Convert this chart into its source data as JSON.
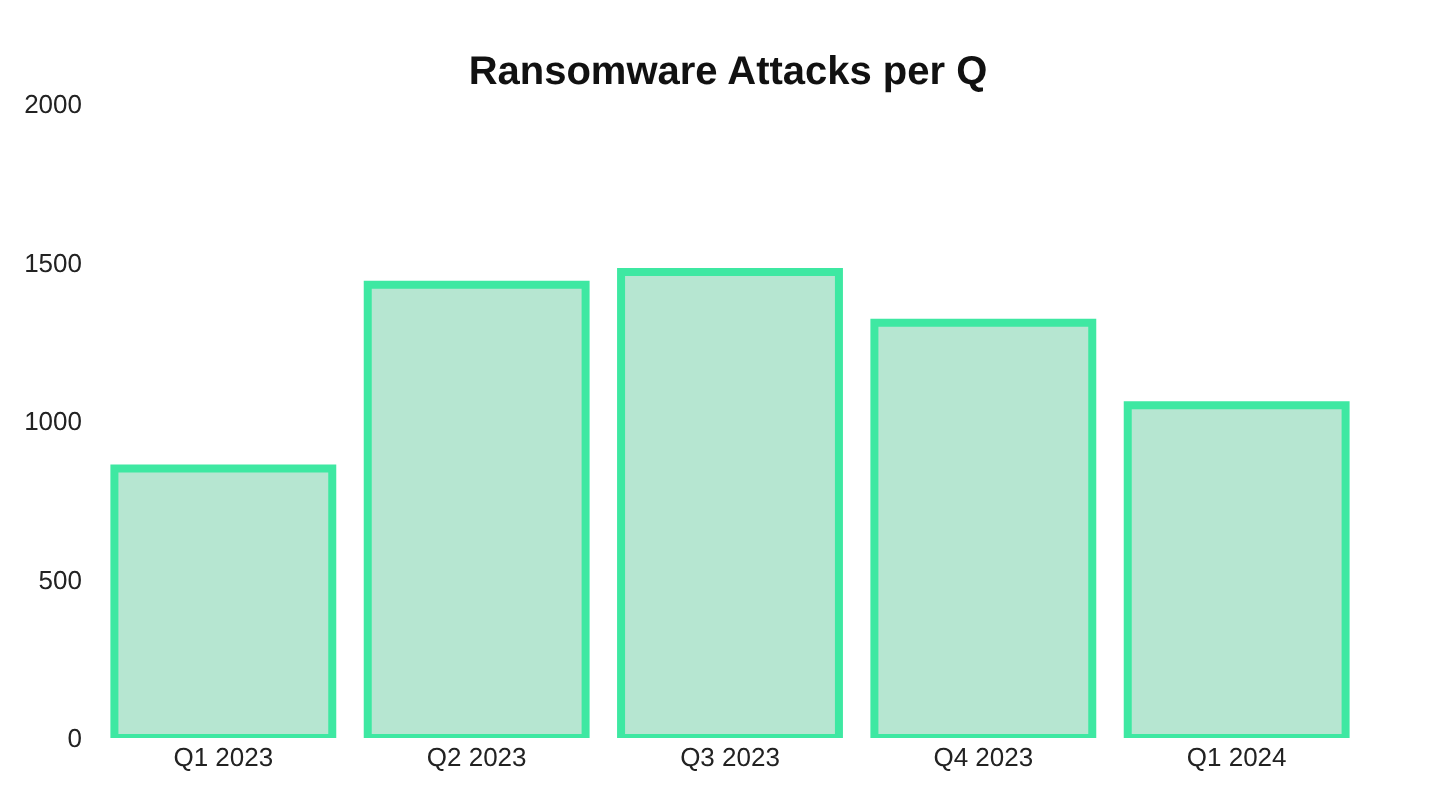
{
  "chart_data": {
    "type": "bar",
    "title": "Ransomware Attacks per Q",
    "categories": [
      "Q1 2023",
      "Q2 2023",
      "Q3 2023",
      "Q4 2023",
      "Q1 2024"
    ],
    "values": [
      850,
      1430,
      1470,
      1310,
      1050
    ],
    "color": "#3ee8a2",
    "ylim": [
      0,
      2000
    ],
    "yticks": [
      0,
      500,
      1000,
      1500,
      2000
    ]
  }
}
